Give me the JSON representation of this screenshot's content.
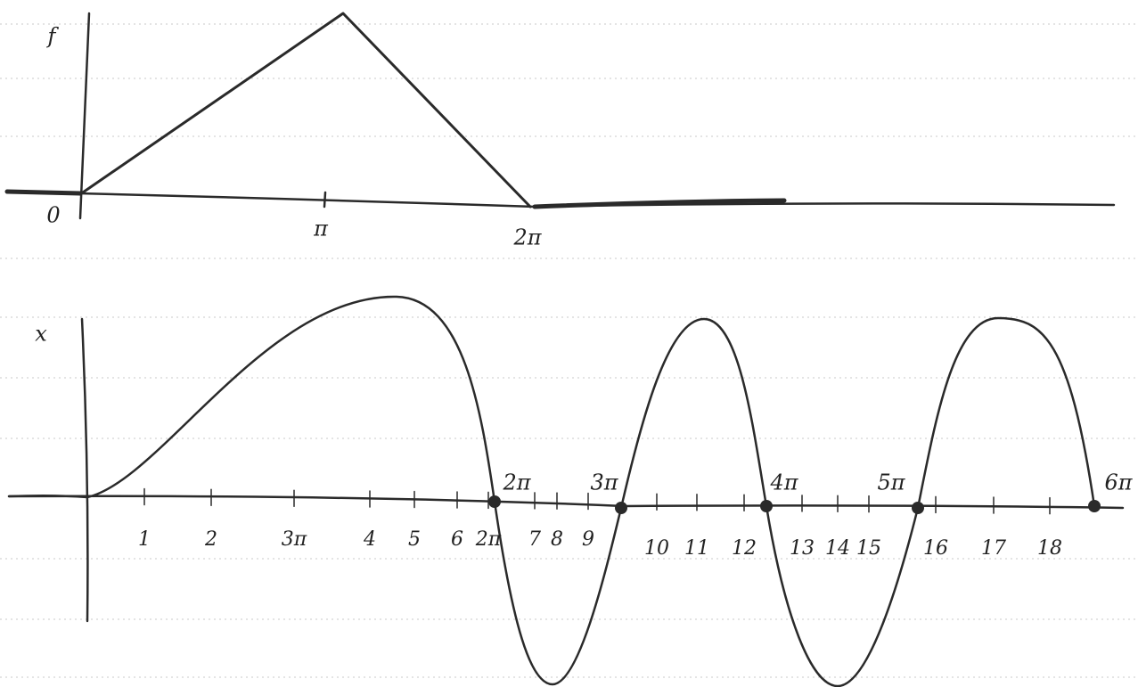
{
  "top": {
    "axis_label": "f",
    "ticks": [
      "0",
      "π",
      "2π"
    ]
  },
  "bottom": {
    "axis_label": "x",
    "ticks": [
      "1",
      "2",
      "3π",
      "4",
      "5",
      "6",
      "2π",
      "7",
      "8",
      "9",
      "10",
      "11",
      "12",
      "13",
      "14",
      "15",
      "16",
      "17",
      "18"
    ],
    "markers": [
      "2π",
      "3π",
      "4π",
      "5π",
      "6π"
    ]
  }
}
